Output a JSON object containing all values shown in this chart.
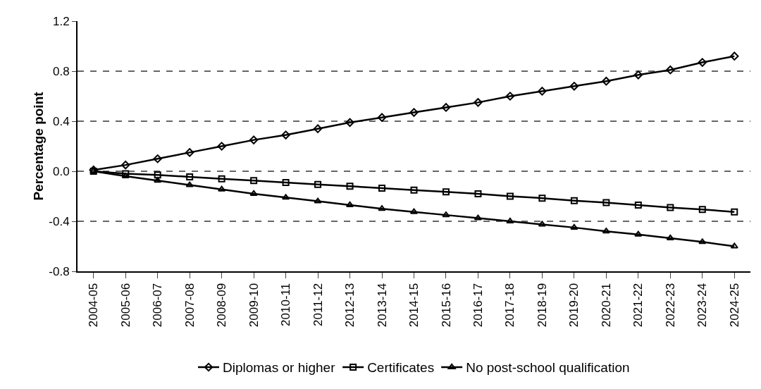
{
  "chart_data": {
    "type": "line",
    "ylabel": "Percentage point",
    "categories": [
      "2004-05",
      "2005-06",
      "2006-07",
      "2007-08",
      "2008-09",
      "2009-10",
      "2010-11",
      "2011-12",
      "2012-13",
      "2013-14",
      "2014-15",
      "2015-16",
      "2016-17",
      "2017-18",
      "2018-19",
      "2019-20",
      "2020-21",
      "2021-22",
      "2022-23",
      "2023-24",
      "2024-25"
    ],
    "series": [
      {
        "name": "Diplomas or higher",
        "color": "#000000",
        "marker": "diamond",
        "values": [
          0.01,
          0.05,
          0.1,
          0.15,
          0.2,
          0.25,
          0.29,
          0.34,
          0.39,
          0.43,
          0.47,
          0.51,
          0.55,
          0.6,
          0.64,
          0.68,
          0.72,
          0.77,
          0.81,
          0.87,
          0.92
        ]
      },
      {
        "name": "Certificates",
        "color": "#000000",
        "marker": "square",
        "values": [
          0,
          -0.02,
          -0.03,
          -0.045,
          -0.06,
          -0.075,
          -0.09,
          -0.105,
          -0.12,
          -0.135,
          -0.15,
          -0.165,
          -0.18,
          -0.2,
          -0.215,
          -0.235,
          -0.25,
          -0.27,
          -0.29,
          -0.305,
          -0.325
        ]
      },
      {
        "name": "No post-school qualification",
        "color": "#000000",
        "marker": "triangle",
        "values": [
          0,
          -0.04,
          -0.075,
          -0.11,
          -0.145,
          -0.18,
          -0.21,
          -0.24,
          -0.27,
          -0.3,
          -0.325,
          -0.35,
          -0.375,
          -0.4,
          -0.425,
          -0.45,
          -0.48,
          -0.505,
          -0.535,
          -0.565,
          -0.6
        ]
      }
    ],
    "ylim": [
      -0.8,
      1.2
    ],
    "yticks": [
      {
        "value": -0.8,
        "label": "-0.8"
      },
      {
        "value": -0.4,
        "label": "-0.4"
      },
      {
        "value": 0,
        "label": "0.0"
      },
      {
        "value": 0.4,
        "label": "0.4"
      },
      {
        "value": 0.8,
        "label": "0.8"
      },
      {
        "value": 1.2,
        "label": "1.2"
      }
    ],
    "grid": "y",
    "legend": "bottom",
    "line_style": "solid"
  }
}
